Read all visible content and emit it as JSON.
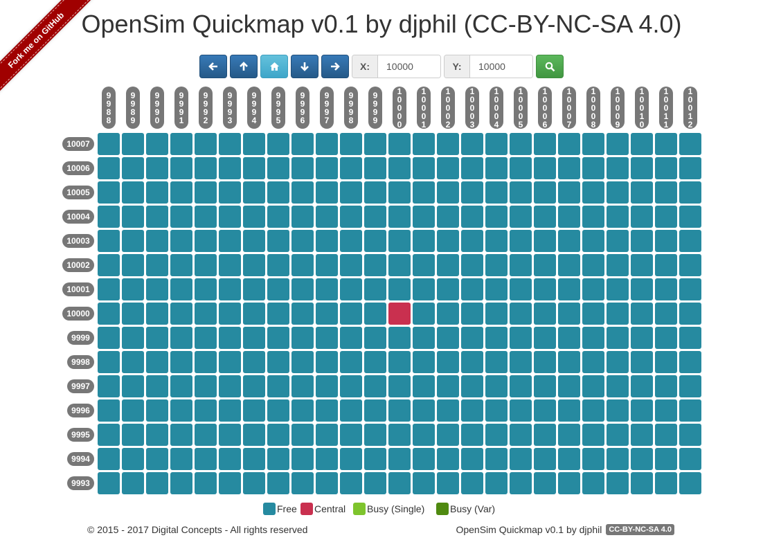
{
  "github_ribbon": {
    "label": "Fork me on GitHub"
  },
  "page_title": "OpenSim Quickmap v0.1 by djphil (CC-BY-NC-SA 4.0)",
  "toolbar": {
    "left_icon": "arrow-left-icon",
    "up_icon": "arrow-up-icon",
    "home_icon": "home-icon",
    "down_icon": "arrow-down-icon",
    "right_icon": "arrow-right-icon",
    "search_icon": "search-icon",
    "x_label": "X:",
    "x_value": "10000",
    "y_label": "Y:",
    "y_value": "10000"
  },
  "grid": {
    "columns": [
      "9988",
      "9989",
      "9990",
      "9991",
      "9992",
      "9993",
      "9994",
      "9995",
      "9996",
      "9997",
      "9998",
      "9999",
      "10000",
      "10001",
      "10002",
      "10003",
      "10004",
      "10005",
      "10006",
      "10007",
      "10008",
      "10009",
      "10010",
      "10011",
      "10012"
    ],
    "rows": [
      "10007",
      "10006",
      "10005",
      "10004",
      "10003",
      "10002",
      "10001",
      "10000",
      "9999",
      "9998",
      "9997",
      "9996",
      "9995",
      "9994",
      "9993"
    ],
    "central": {
      "x": "10000",
      "y": "10000"
    },
    "colors": {
      "free": "#268aa0",
      "central": "#c9304f",
      "busy_single": "#7ec42d",
      "busy_var": "#4f8a10"
    }
  },
  "legend": [
    {
      "label": "Free",
      "color": "#268aa0"
    },
    {
      "label": "Central",
      "color": "#c9304f"
    },
    {
      "label": "Busy (Single)",
      "color": "#7ec42d"
    },
    {
      "label": "Busy (Var)",
      "color": "#4f8a10"
    }
  ],
  "footer": {
    "copyright": "© 2015 - 2017 Digital Concepts - All rights reserved",
    "credit": "OpenSim Quickmap v0.1 by djphil",
    "license": "CC-BY-NC-SA 4.0"
  }
}
